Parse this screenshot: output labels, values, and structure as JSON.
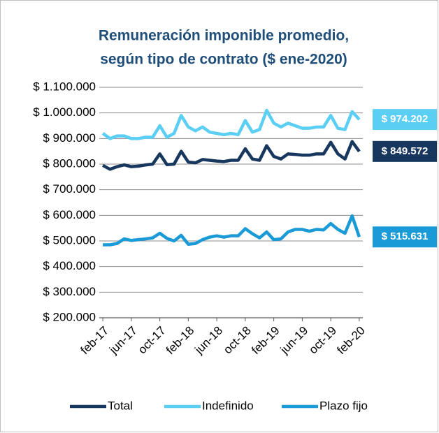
{
  "chart_data": {
    "type": "line",
    "title": [
      "Remuneración imponible promedio,",
      "según tipo de contrato ($ ene-2020)"
    ],
    "categories": [
      "feb-17",
      null,
      null,
      null,
      "jun-17",
      null,
      null,
      null,
      "oct-17",
      null,
      null,
      null,
      "feb-18",
      null,
      null,
      null,
      "jun-18",
      null,
      null,
      null,
      "oct-18",
      null,
      null,
      null,
      "feb-19",
      null,
      null,
      null,
      "jun-19",
      null,
      null,
      null,
      "oct-19",
      null,
      null,
      null,
      "feb-20"
    ],
    "series": [
      {
        "name": "Total",
        "color": "#17375e",
        "values": [
          795000,
          780000,
          790000,
          797000,
          790000,
          792000,
          797000,
          800000,
          840000,
          798000,
          800000,
          850000,
          808000,
          805000,
          818000,
          815000,
          812000,
          810000,
          815000,
          815000,
          860000,
          820000,
          815000,
          872000,
          830000,
          820000,
          840000,
          838000,
          835000,
          835000,
          840000,
          840000,
          885000,
          840000,
          820000,
          888000,
          849572
        ],
        "value_labels": [
          null,
          null,
          null,
          null,
          null,
          null,
          null,
          null,
          null,
          null,
          null,
          null,
          null,
          null,
          null,
          null,
          null,
          null,
          null,
          null,
          null,
          null,
          null,
          null,
          null,
          null,
          null,
          null,
          null,
          null,
          null,
          null,
          null,
          null,
          null,
          null,
          "$ 849.572"
        ]
      },
      {
        "name": "Indefinido",
        "color": "#5bcef4",
        "values": [
          920000,
          900000,
          910000,
          910000,
          900000,
          900000,
          905000,
          905000,
          950000,
          905000,
          920000,
          990000,
          945000,
          930000,
          945000,
          925000,
          920000,
          915000,
          920000,
          915000,
          970000,
          925000,
          935000,
          1010000,
          960000,
          945000,
          960000,
          950000,
          940000,
          940000,
          945000,
          945000,
          990000,
          940000,
          935000,
          1005000,
          974202
        ],
        "value_labels": [
          null,
          null,
          null,
          null,
          null,
          null,
          null,
          null,
          null,
          null,
          null,
          null,
          null,
          null,
          null,
          null,
          null,
          null,
          null,
          null,
          null,
          null,
          null,
          null,
          null,
          null,
          null,
          null,
          null,
          null,
          null,
          null,
          null,
          null,
          null,
          null,
          "$ 974.202"
        ]
      },
      {
        "name": "Plazo fijo",
        "color": "#1a9ad6",
        "values": [
          485000,
          485000,
          490000,
          508000,
          502000,
          505000,
          508000,
          512000,
          530000,
          510000,
          500000,
          522000,
          487000,
          490000,
          505000,
          515000,
          520000,
          515000,
          520000,
          520000,
          548000,
          528000,
          512000,
          535000,
          505000,
          508000,
          535000,
          545000,
          545000,
          538000,
          545000,
          543000,
          568000,
          545000,
          530000,
          598000,
          515631
        ],
        "value_labels": [
          null,
          null,
          null,
          null,
          null,
          null,
          null,
          null,
          null,
          null,
          null,
          null,
          null,
          null,
          null,
          null,
          null,
          null,
          null,
          null,
          null,
          null,
          null,
          null,
          null,
          null,
          null,
          null,
          null,
          null,
          null,
          null,
          null,
          null,
          null,
          null,
          "$ 515.631"
        ]
      }
    ],
    "ylim": [
      200000,
      1100000
    ],
    "yticks": [
      {
        "value": 200000,
        "label": "$ 200.000"
      },
      {
        "value": 300000,
        "label": "$ 300.000"
      },
      {
        "value": 400000,
        "label": "$ 400.000"
      },
      {
        "value": 500000,
        "label": "$ 500.000"
      },
      {
        "value": 600000,
        "label": "$ 600.000"
      },
      {
        "value": 700000,
        "label": "$ 700.000"
      },
      {
        "value": 800000,
        "label": "$ 800.000"
      },
      {
        "value": 900000,
        "label": "$ 900.000"
      },
      {
        "value": 1000000,
        "label": "$ 1.000.000"
      },
      {
        "value": 1100000,
        "label": "$ 1.100.000"
      }
    ],
    "grid": true
  }
}
